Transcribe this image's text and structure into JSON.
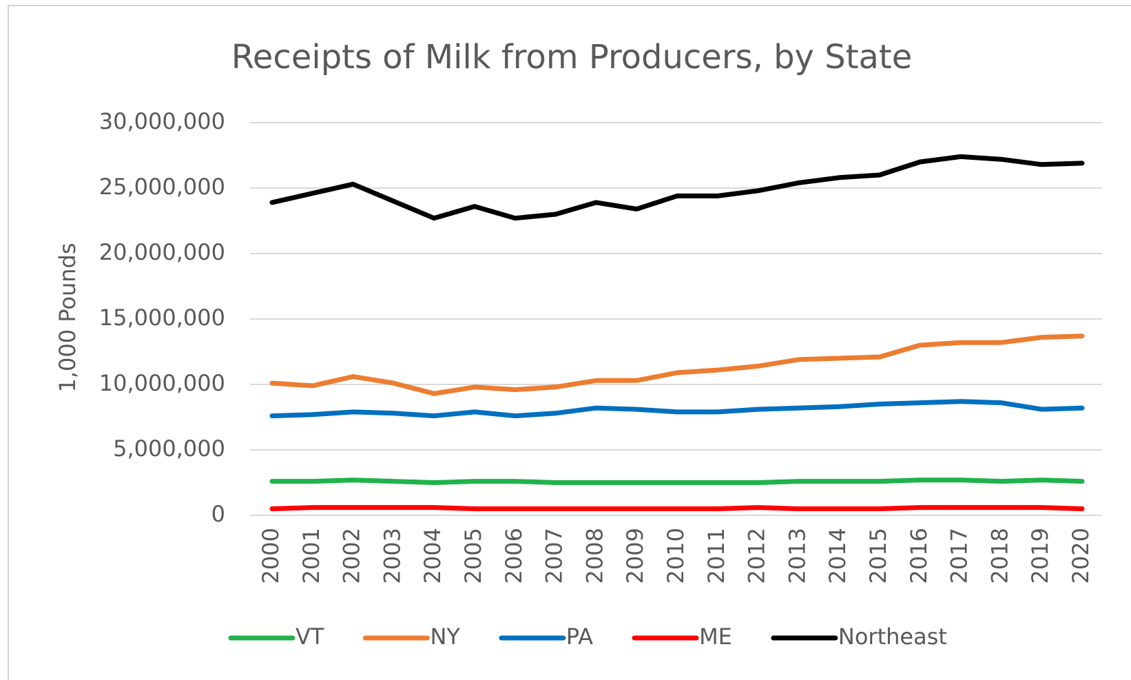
{
  "chart_data": {
    "type": "line",
    "title": "Receipts of Milk from Producers, by State",
    "y_label": "1,000 Pounds",
    "categories": [
      "2000",
      "2001",
      "2002",
      "2003",
      "2004",
      "2005",
      "2006",
      "2007",
      "2008",
      "2009",
      "2010",
      "2011",
      "2012",
      "2013",
      "2014",
      "2015",
      "2016",
      "2017",
      "2018",
      "2019",
      "2020"
    ],
    "series": [
      {
        "name": "VT",
        "color": "#1fb34a",
        "values": [
          2600000,
          2600000,
          2700000,
          2600000,
          2500000,
          2600000,
          2600000,
          2500000,
          2500000,
          2500000,
          2500000,
          2500000,
          2500000,
          2600000,
          2600000,
          2600000,
          2700000,
          2700000,
          2600000,
          2700000,
          2600000
        ]
      },
      {
        "name": "NY",
        "color": "#ed7d31",
        "values": [
          10100000,
          9900000,
          10600000,
          10100000,
          9300000,
          9800000,
          9600000,
          9800000,
          10300000,
          10300000,
          10900000,
          11100000,
          11400000,
          11900000,
          12000000,
          12100000,
          13000000,
          13200000,
          13200000,
          13600000,
          13700000
        ]
      },
      {
        "name": "PA",
        "color": "#0070c0",
        "values": [
          7600000,
          7700000,
          7900000,
          7800000,
          7600000,
          7900000,
          7600000,
          7800000,
          8200000,
          8100000,
          7900000,
          7900000,
          8100000,
          8200000,
          8300000,
          8500000,
          8600000,
          8700000,
          8600000,
          8100000,
          8200000
        ]
      },
      {
        "name": "ME",
        "color": "#ff0000",
        "values": [
          500000,
          600000,
          600000,
          600000,
          600000,
          500000,
          500000,
          500000,
          500000,
          500000,
          500000,
          500000,
          600000,
          500000,
          500000,
          500000,
          600000,
          600000,
          600000,
          600000,
          500000
        ]
      },
      {
        "name": "Northeast",
        "color": "#000000",
        "values": [
          23900000,
          24600000,
          25300000,
          24000000,
          22700000,
          23600000,
          22700000,
          23000000,
          23900000,
          23400000,
          24400000,
          24400000,
          24800000,
          25400000,
          25800000,
          26000000,
          27000000,
          27400000,
          27200000,
          26800000,
          26900000
        ]
      }
    ],
    "ylim": [
      0,
      30000000
    ],
    "yticks": [
      0,
      {
        "value": 5000000,
        "label": "5,000,000"
      },
      {
        "value": 10000000,
        "label": "10,000,000"
      },
      {
        "value": 15000000,
        "label": "15,000,000"
      },
      {
        "value": 20000000,
        "label": "20,000,000"
      },
      {
        "value": 25000000,
        "label": "25,000,000"
      },
      {
        "value": 30000000,
        "label": "30,000,000"
      }
    ],
    "grid": true,
    "legend": "bottom"
  }
}
